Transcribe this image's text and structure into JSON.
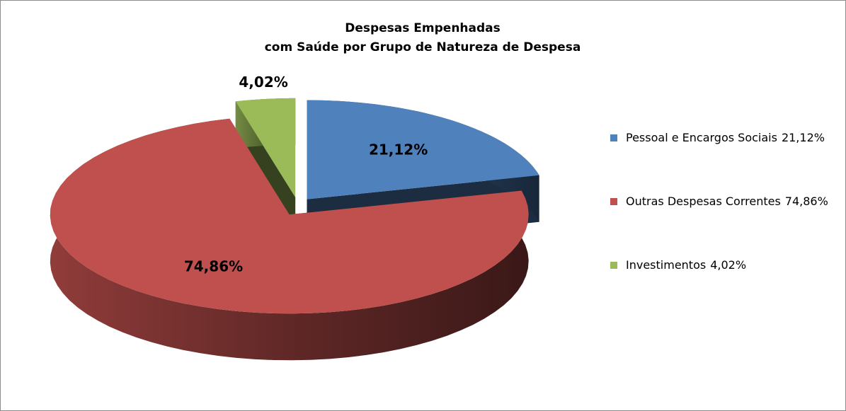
{
  "chart_data": {
    "type": "pie3d",
    "title": [
      "Despesas Empenhadas",
      "com Saúde por Grupo de Natureza de Despesa"
    ],
    "categories": [
      "Pessoal e Encargos Sociais",
      "Outras Despesas Correntes",
      "Investimentos"
    ],
    "values": [
      21.12,
      74.86,
      4.02
    ],
    "value_labels": [
      "21,12%",
      "74,86%",
      "4,02%"
    ],
    "colors": [
      "#4f81bd",
      "#c0504d",
      "#9bbb59"
    ],
    "legend": "right"
  }
}
